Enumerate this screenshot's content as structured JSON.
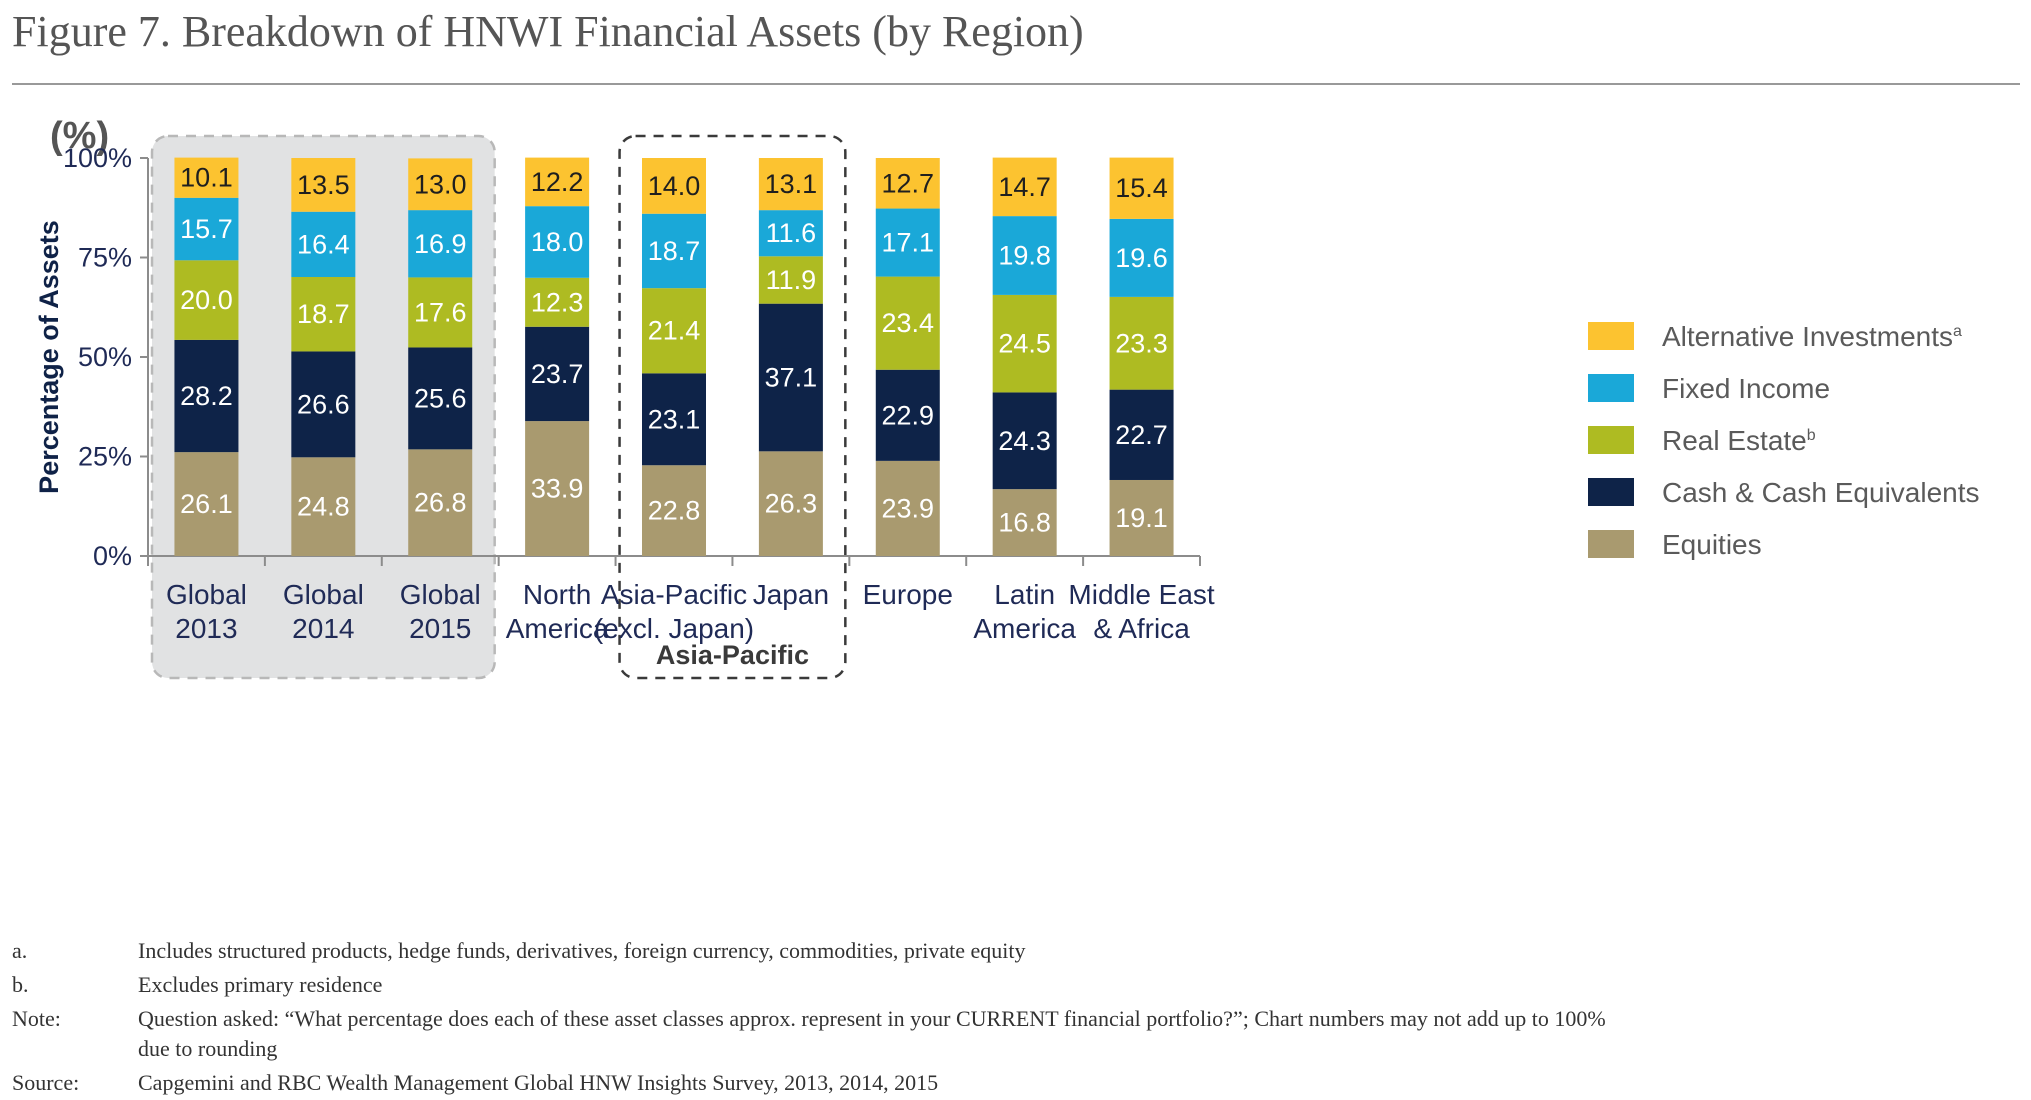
{
  "figure": {
    "title": "Figure 7. Breakdown of HNWI Financial Assets (by Region)",
    "unit_label": "(%)"
  },
  "colors": {
    "Equities": "#a99a6f",
    "Cash & Cash Equivalents": "#0e2348",
    "Real Estate": "#aebb22",
    "Fixed Income": "#1aa8d8",
    "Alternative Investments": "#fcc330"
  },
  "chart_data": {
    "type": "bar",
    "stacked": true,
    "ylabel": "Percentage of Assets",
    "ylim": [
      0,
      100
    ],
    "yticks": [
      "0%",
      "25%",
      "50%",
      "75%",
      "100%"
    ],
    "categories": [
      [
        "Global",
        "2013"
      ],
      [
        "Global",
        "2014"
      ],
      [
        "Global",
        "2015"
      ],
      [
        "North",
        "America"
      ],
      [
        "Asia-Pacific",
        "(excl. Japan)"
      ],
      [
        "Japan"
      ],
      [
        "Europe"
      ],
      [
        "Latin",
        "America"
      ],
      [
        "Middle East",
        "& Africa"
      ]
    ],
    "series": [
      {
        "name": "Equities",
        "values": [
          26.1,
          24.8,
          26.8,
          33.9,
          22.8,
          26.3,
          23.9,
          16.8,
          19.1
        ]
      },
      {
        "name": "Cash & Cash Equivalents",
        "values": [
          28.2,
          26.6,
          25.6,
          23.7,
          23.1,
          37.1,
          22.9,
          24.3,
          22.7
        ]
      },
      {
        "name": "Real Estate",
        "values": [
          20.0,
          18.7,
          17.6,
          12.3,
          21.4,
          11.9,
          23.4,
          24.5,
          23.3
        ]
      },
      {
        "name": "Fixed Income",
        "values": [
          15.7,
          16.4,
          16.9,
          18.0,
          18.7,
          11.6,
          17.1,
          19.8,
          19.6
        ]
      },
      {
        "name": "Alternative Investments",
        "values": [
          10.1,
          13.5,
          13.0,
          12.2,
          14.0,
          13.1,
          12.7,
          14.7,
          15.4
        ]
      }
    ],
    "legend": [
      {
        "name": "Alternative Investments",
        "sup": "a"
      },
      {
        "name": "Fixed Income",
        "sup": ""
      },
      {
        "name": "Real Estate",
        "sup": "b"
      },
      {
        "name": "Cash & Cash Equivalents",
        "sup": ""
      },
      {
        "name": "Equities",
        "sup": ""
      }
    ],
    "legend_position": "right",
    "groups": [
      {
        "label": "",
        "category_indices": [
          0,
          2
        ],
        "style": "shaded-dashed"
      },
      {
        "label": "Asia-Pacific",
        "category_indices": [
          4,
          5
        ],
        "style": "dashed"
      }
    ]
  },
  "footnotes": [
    {
      "key": "a.",
      "lines": [
        "Includes structured products, hedge funds, derivatives, foreign currency, commodities, private equity"
      ]
    },
    {
      "key": "b.",
      "lines": [
        "Excludes primary residence"
      ]
    },
    {
      "key": "Note:",
      "lines": [
        "Question asked: “What percentage does each of these asset classes approx. represent in your CURRENT financial portfolio?”; Chart numbers may not add up to 100%",
        "due to rounding"
      ]
    },
    {
      "key": "Source:",
      "lines": [
        "Capgemini and RBC Wealth Management Global HNW Insights Survey, 2013, 2014, 2015"
      ]
    }
  ]
}
